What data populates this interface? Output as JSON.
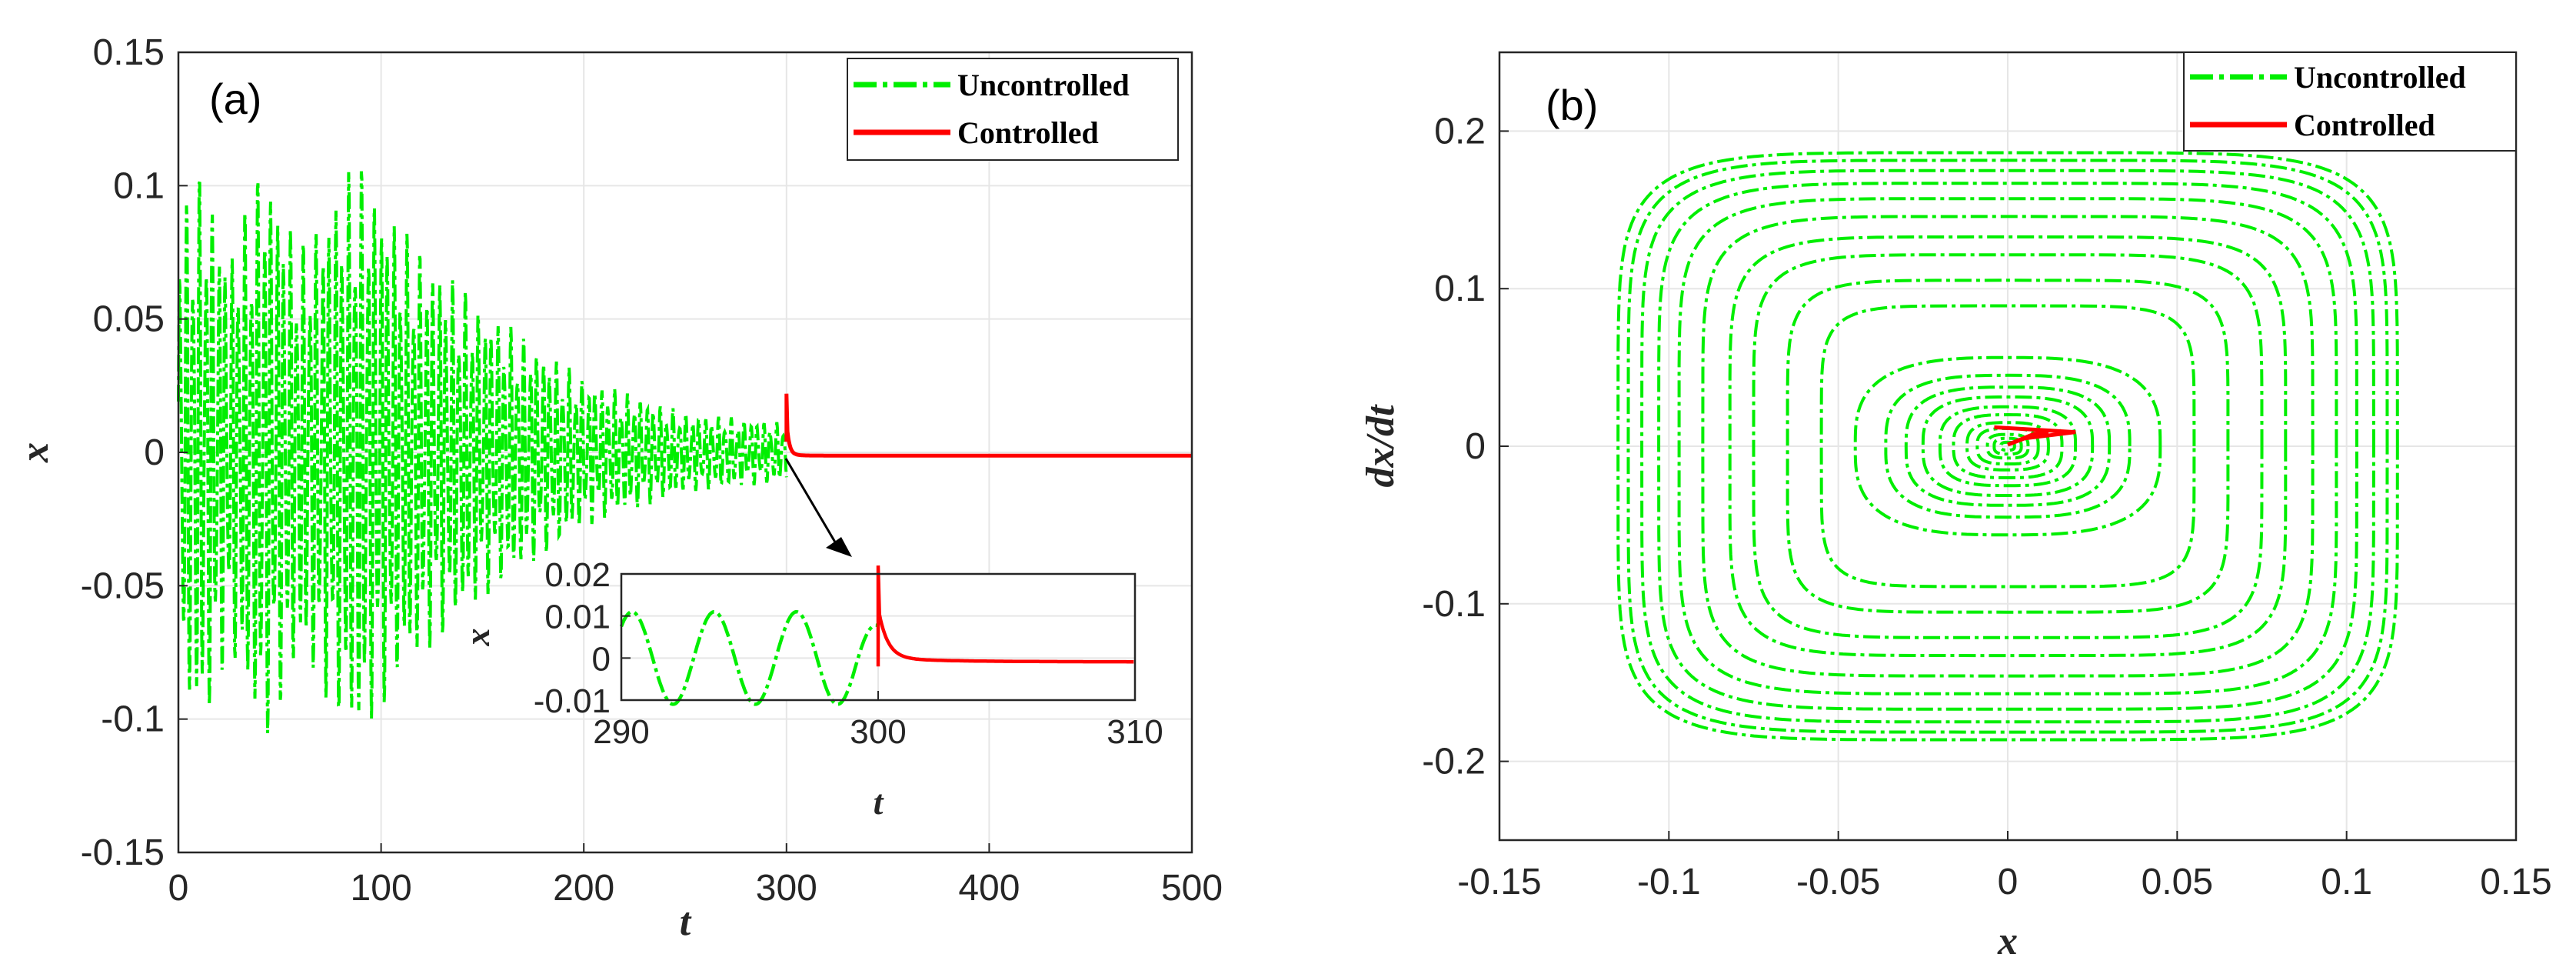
{
  "colors": {
    "uncontrolled": "#00ee00",
    "controlled": "#ff0000"
  },
  "chart_data": [
    {
      "id": "a",
      "type": "line",
      "panel_label": "(a)",
      "xlabel": "t",
      "ylabel": "x",
      "xlim": [
        0,
        500
      ],
      "ylim": [
        -0.15,
        0.15
      ],
      "x_ticks": [
        "0",
        "100",
        "200",
        "300",
        "400",
        "500"
      ],
      "y_ticks": [
        "-0.15",
        "-0.1",
        "-0.05",
        "0",
        "0.05",
        "0.1",
        "0.15"
      ],
      "grid": true,
      "legend_position": "top-right",
      "legend": [
        "Uncontrolled",
        "Controlled"
      ],
      "series": [
        {
          "name": "Uncontrolled",
          "t_range": [
            0,
            300
          ],
          "envelope": [
            [
              0,
              0.09
            ],
            [
              12,
              0.108
            ],
            [
              25,
              0.075
            ],
            [
              42,
              0.112
            ],
            [
              60,
              0.078
            ],
            [
              88,
              0.112
            ],
            [
              110,
              0.085
            ],
            [
              150,
              0.055
            ],
            [
              200,
              0.028
            ],
            [
              250,
              0.015
            ],
            [
              300,
              0.011
            ]
          ]
        },
        {
          "name": "Controlled",
          "t_range": [
            300,
            500
          ],
          "spike_peak": 0.022,
          "settled_value": 0.0
        }
      ],
      "inset": {
        "xlabel": "t",
        "ylabel": "x",
        "xlim": [
          290,
          310
        ],
        "ylim": [
          -0.01,
          0.02
        ],
        "x_ticks": [
          "290",
          "300",
          "310"
        ],
        "y_ticks": [
          "-0.01",
          "0",
          "0.01",
          "0.02"
        ],
        "uncontrolled_amplitude": 0.011,
        "controlled_spike": 0.022
      }
    },
    {
      "id": "b",
      "type": "line",
      "panel_label": "(b)",
      "xlabel": "x",
      "ylabel": "dx/dt",
      "xlim": [
        -0.15,
        0.15
      ],
      "ylim": [
        -0.25,
        0.25
      ],
      "x_ticks": [
        "-0.15",
        "-0.1",
        "-0.05",
        "0",
        "0.05",
        "0.1",
        "0.15"
      ],
      "y_ticks": [
        "-0.2",
        "-0.1",
        "0",
        "0.1",
        "0.2"
      ],
      "grid": true,
      "legend_position": "top-right",
      "legend": [
        "Uncontrolled",
        "Controlled"
      ],
      "series": [
        {
          "name": "Uncontrolled",
          "orbit_amplitudes": [
            0.002,
            0.004,
            0.006,
            0.009,
            0.012,
            0.016,
            0.02,
            0.025,
            0.03,
            0.036,
            0.045,
            0.055,
            0.065,
            0.075,
            0.082,
            0.09,
            0.097,
            0.103,
            0.108,
            0.112,
            0.115
          ]
        },
        {
          "name": "Controlled",
          "points": [
            [
              -0.004,
              0.012
            ],
            [
              0.02,
              0.009
            ],
            [
              0.005,
              0.005
            ],
            [
              0.0,
              0.001
            ],
            [
              0.008,
              0.008
            ],
            [
              0.012,
              0.009
            ]
          ]
        }
      ]
    }
  ]
}
